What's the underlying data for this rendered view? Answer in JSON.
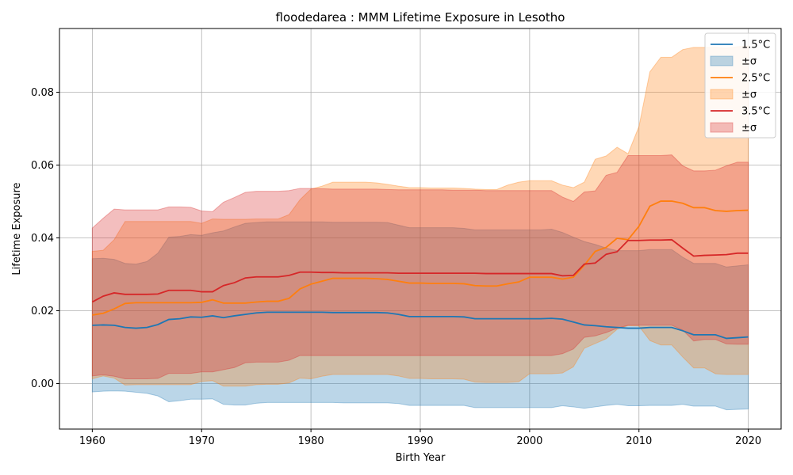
{
  "chart_data": {
    "type": "line",
    "title": "floodedarea : MMM Lifetime Exposure in Lesotho",
    "xlabel": "Birth Year",
    "ylabel": "Lifetime Exposure",
    "xlim": [
      1957,
      2023
    ],
    "ylim": [
      -0.0125,
      0.0975
    ],
    "xticks": [
      1960,
      1970,
      1980,
      1990,
      2000,
      2010,
      2020
    ],
    "yticks": [
      0.0,
      0.02,
      0.04,
      0.06,
      0.08
    ],
    "ytick_labels": [
      "0.00",
      "0.02",
      "0.04",
      "0.06",
      "0.08"
    ],
    "grid": true,
    "legend_position": "top-right",
    "legend": [
      "1.5°C",
      "±σ",
      "2.5°C",
      "±σ",
      "3.5°C",
      "±σ"
    ],
    "x": [
      1960,
      1961,
      1962,
      1963,
      1964,
      1965,
      1966,
      1967,
      1968,
      1969,
      1970,
      1971,
      1972,
      1973,
      1974,
      1975,
      1976,
      1977,
      1978,
      1979,
      1980,
      1981,
      1982,
      1983,
      1984,
      1985,
      1986,
      1987,
      1988,
      1989,
      1990,
      1991,
      1992,
      1993,
      1994,
      1995,
      1996,
      1997,
      1998,
      1999,
      2000,
      2001,
      2002,
      2003,
      2004,
      2005,
      2006,
      2007,
      2008,
      2009,
      2010,
      2011,
      2012,
      2013,
      2014,
      2015,
      2016,
      2017,
      2018,
      2019,
      2020
    ],
    "series": [
      {
        "name": "1.5°C",
        "band_label": "±σ",
        "color": "#1f77b4",
        "band_color": "#1f77b4",
        "band_opacity": 0.3,
        "mean": [
          0.016,
          0.0161,
          0.016,
          0.0154,
          0.0152,
          0.0154,
          0.0162,
          0.0176,
          0.0178,
          0.0183,
          0.0182,
          0.0186,
          0.0181,
          0.0186,
          0.019,
          0.0194,
          0.0196,
          0.0196,
          0.0196,
          0.0196,
          0.0196,
          0.0196,
          0.0195,
          0.0195,
          0.0195,
          0.0195,
          0.0195,
          0.0194,
          0.019,
          0.0184,
          0.0184,
          0.0184,
          0.0184,
          0.0184,
          0.0183,
          0.0178,
          0.0178,
          0.0178,
          0.0178,
          0.0178,
          0.0178,
          0.0178,
          0.0179,
          0.0177,
          0.0169,
          0.0161,
          0.0159,
          0.0156,
          0.0154,
          0.0152,
          0.0152,
          0.0154,
          0.0154,
          0.0154,
          0.0145,
          0.0134,
          0.0134,
          0.0134,
          0.0124,
          0.0126,
          0.0128
        ],
        "lower": [
          -0.0023,
          -0.0021,
          -0.002,
          -0.0021,
          -0.0024,
          -0.0027,
          -0.0034,
          -0.005,
          -0.0047,
          -0.0043,
          -0.0043,
          -0.0042,
          -0.0057,
          -0.0059,
          -0.0059,
          -0.0054,
          -0.0052,
          -0.0052,
          -0.0052,
          -0.0052,
          -0.0052,
          -0.0052,
          -0.0052,
          -0.0053,
          -0.0053,
          -0.0053,
          -0.0053,
          -0.0053,
          -0.0055,
          -0.006,
          -0.006,
          -0.006,
          -0.006,
          -0.006,
          -0.006,
          -0.0066,
          -0.0066,
          -0.0066,
          -0.0066,
          -0.0066,
          -0.0066,
          -0.0066,
          -0.0066,
          -0.0061,
          -0.0064,
          -0.0068,
          -0.0064,
          -0.006,
          -0.0057,
          -0.0061,
          -0.0061,
          -0.006,
          -0.006,
          -0.006,
          -0.0057,
          -0.0062,
          -0.0062,
          -0.0062,
          -0.0072,
          -0.0071,
          -0.007
        ],
        "upper": [
          0.0343,
          0.0344,
          0.0341,
          0.033,
          0.0328,
          0.0335,
          0.0358,
          0.0402,
          0.0404,
          0.0409,
          0.0407,
          0.0414,
          0.0419,
          0.043,
          0.044,
          0.0442,
          0.0444,
          0.0444,
          0.0444,
          0.0444,
          0.0444,
          0.0444,
          0.0443,
          0.0443,
          0.0443,
          0.0443,
          0.0443,
          0.0442,
          0.0435,
          0.0428,
          0.0428,
          0.0428,
          0.0428,
          0.0428,
          0.0426,
          0.0422,
          0.0422,
          0.0422,
          0.0422,
          0.0422,
          0.0422,
          0.0422,
          0.0424,
          0.0415,
          0.0402,
          0.039,
          0.0382,
          0.0372,
          0.0365,
          0.0365,
          0.0365,
          0.0368,
          0.0368,
          0.0368,
          0.0347,
          0.033,
          0.033,
          0.033,
          0.032,
          0.0323,
          0.0326
        ]
      },
      {
        "name": "2.5°C",
        "band_label": "±σ",
        "color": "#ff7f0e",
        "band_color": "#ff7f0e",
        "band_opacity": 0.3,
        "mean": [
          0.0188,
          0.0193,
          0.0205,
          0.022,
          0.0222,
          0.0222,
          0.0222,
          0.0222,
          0.0222,
          0.0222,
          0.0223,
          0.023,
          0.0221,
          0.0221,
          0.0221,
          0.0224,
          0.0226,
          0.0226,
          0.0234,
          0.026,
          0.0273,
          0.0281,
          0.0289,
          0.0289,
          0.0289,
          0.0289,
          0.0288,
          0.0286,
          0.0281,
          0.0276,
          0.0276,
          0.0275,
          0.0275,
          0.0275,
          0.0274,
          0.0269,
          0.0268,
          0.0268,
          0.0274,
          0.0279,
          0.0292,
          0.0292,
          0.0292,
          0.0287,
          0.0292,
          0.0325,
          0.0363,
          0.0374,
          0.0399,
          0.0395,
          0.0432,
          0.0487,
          0.0501,
          0.0501,
          0.0495,
          0.0483,
          0.0483,
          0.0475,
          0.0473,
          0.0475,
          0.0476
        ],
        "lower": [
          0.0013,
          0.0021,
          0.0015,
          -0.0004,
          -0.0003,
          -0.0003,
          -0.0003,
          -0.0003,
          -0.0003,
          -0.0003,
          0.0006,
          0.0008,
          -0.0007,
          -0.0007,
          -0.0007,
          -0.0003,
          -0.0002,
          -0.0002,
          0.0002,
          0.0015,
          0.0013,
          0.002,
          0.0025,
          0.0025,
          0.0025,
          0.0025,
          0.0025,
          0.0025,
          0.0021,
          0.0014,
          0.0014,
          0.0013,
          0.0013,
          0.0013,
          0.0012,
          0.0004,
          0.0003,
          0.0003,
          0.0003,
          0.0005,
          0.0027,
          0.0027,
          0.0027,
          0.0029,
          0.0046,
          0.0097,
          0.011,
          0.0123,
          0.0149,
          0.0159,
          0.0158,
          0.0118,
          0.0106,
          0.0106,
          0.0073,
          0.0043,
          0.0043,
          0.0027,
          0.0025,
          0.0025,
          0.0025
        ],
        "upper": [
          0.0363,
          0.0366,
          0.0395,
          0.0445,
          0.0445,
          0.0445,
          0.0445,
          0.0445,
          0.0445,
          0.0445,
          0.044,
          0.0452,
          0.0451,
          0.0451,
          0.0451,
          0.0452,
          0.0452,
          0.0452,
          0.0464,
          0.0505,
          0.0534,
          0.0542,
          0.0553,
          0.0553,
          0.0553,
          0.0553,
          0.0551,
          0.0547,
          0.0542,
          0.0538,
          0.0538,
          0.0537,
          0.0537,
          0.0537,
          0.0536,
          0.0534,
          0.0533,
          0.0533,
          0.0545,
          0.0553,
          0.0557,
          0.0557,
          0.0557,
          0.0545,
          0.0538,
          0.0553,
          0.0616,
          0.0625,
          0.0649,
          0.0631,
          0.0706,
          0.0856,
          0.0896,
          0.0896,
          0.0917,
          0.0923,
          0.0923,
          0.0923,
          0.0921,
          0.0925,
          0.0927
        ]
      },
      {
        "name": "3.5°C",
        "band_label": "±σ",
        "color": "#d62728",
        "band_color": "#d62728",
        "band_opacity": 0.3,
        "mean": [
          0.0224,
          0.024,
          0.0249,
          0.0245,
          0.0245,
          0.0245,
          0.0246,
          0.0256,
          0.0256,
          0.0256,
          0.0252,
          0.0252,
          0.0269,
          0.0277,
          0.029,
          0.0293,
          0.0293,
          0.0293,
          0.0297,
          0.0306,
          0.0306,
          0.0305,
          0.0305,
          0.0304,
          0.0304,
          0.0304,
          0.0304,
          0.0304,
          0.0303,
          0.0303,
          0.0303,
          0.0303,
          0.0303,
          0.0303,
          0.0303,
          0.0303,
          0.0302,
          0.0302,
          0.0302,
          0.0302,
          0.0302,
          0.0302,
          0.0302,
          0.0296,
          0.0297,
          0.0328,
          0.0331,
          0.0355,
          0.0362,
          0.0393,
          0.0393,
          0.0394,
          0.0394,
          0.0395,
          0.0372,
          0.035,
          0.0352,
          0.0353,
          0.0354,
          0.0358,
          0.0358
        ],
        "lower": [
          0.0021,
          0.0024,
          0.002,
          0.0013,
          0.0013,
          0.0013,
          0.0014,
          0.0028,
          0.0028,
          0.0028,
          0.0032,
          0.0032,
          0.0038,
          0.0044,
          0.0057,
          0.0059,
          0.0059,
          0.0059,
          0.0064,
          0.0077,
          0.0077,
          0.0077,
          0.0077,
          0.0077,
          0.0077,
          0.0077,
          0.0077,
          0.0077,
          0.0077,
          0.0077,
          0.0077,
          0.0077,
          0.0077,
          0.0077,
          0.0077,
          0.0077,
          0.0077,
          0.0077,
          0.0077,
          0.0077,
          0.0077,
          0.0077,
          0.0077,
          0.0082,
          0.0095,
          0.0127,
          0.0131,
          0.014,
          0.0152,
          0.016,
          0.016,
          0.016,
          0.016,
          0.016,
          0.0147,
          0.0117,
          0.0121,
          0.0121,
          0.0109,
          0.0108,
          0.0108
        ],
        "upper": [
          0.0427,
          0.0454,
          0.0479,
          0.0477,
          0.0477,
          0.0477,
          0.0477,
          0.0485,
          0.0485,
          0.0484,
          0.0474,
          0.0472,
          0.0498,
          0.0511,
          0.0525,
          0.0528,
          0.0528,
          0.0528,
          0.053,
          0.0536,
          0.0536,
          0.0535,
          0.0534,
          0.0534,
          0.0534,
          0.0534,
          0.0534,
          0.0533,
          0.0532,
          0.0532,
          0.0532,
          0.0532,
          0.0532,
          0.0531,
          0.0531,
          0.0531,
          0.053,
          0.053,
          0.053,
          0.053,
          0.053,
          0.053,
          0.053,
          0.0512,
          0.05,
          0.0526,
          0.0529,
          0.0572,
          0.058,
          0.0626,
          0.0626,
          0.0626,
          0.0626,
          0.0628,
          0.0598,
          0.0584,
          0.0584,
          0.0586,
          0.0598,
          0.0608,
          0.0608
        ]
      }
    ]
  }
}
